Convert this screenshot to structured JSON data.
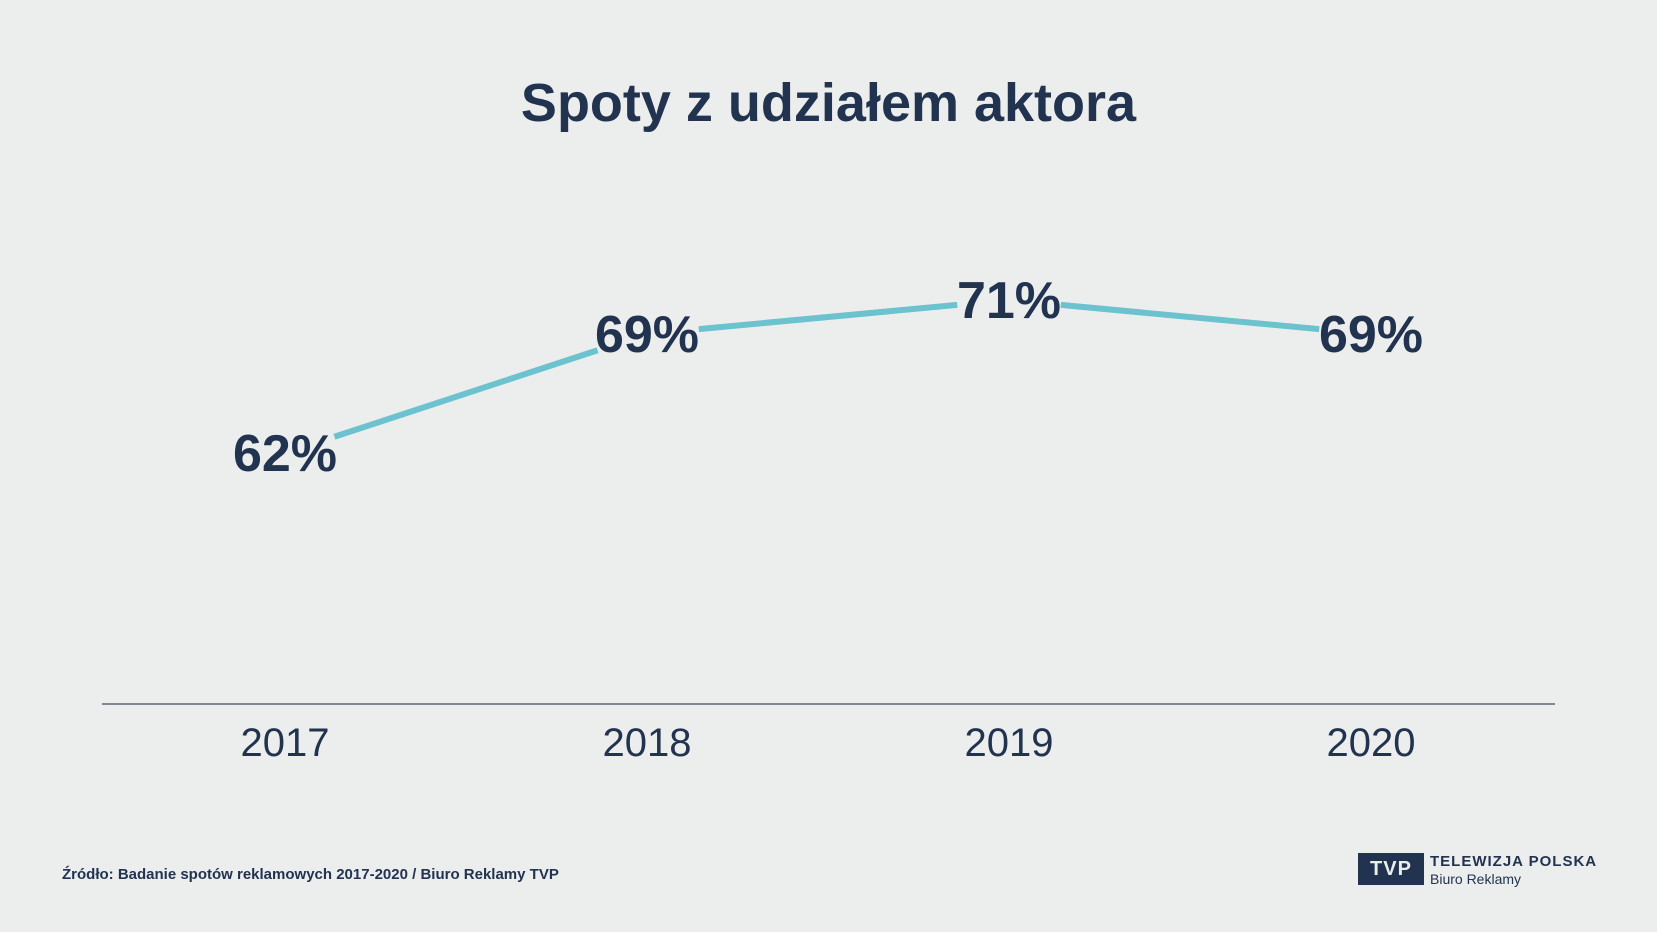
{
  "chart_data": {
    "type": "line",
    "title": "Spoty z udziałem aktora",
    "categories": [
      "2017",
      "2018",
      "2019",
      "2020"
    ],
    "series": [
      {
        "values": [
          62,
          69,
          71,
          69
        ]
      }
    ],
    "data_labels": [
      "62%",
      "69%",
      "71%",
      "69%"
    ],
    "value_unit": "%",
    "ylim": [
      55,
      75
    ],
    "grid": false,
    "legend": "none",
    "line_color": "#6cc2cf",
    "text_color": "#22334f",
    "axis_color": "#5a6678"
  },
  "footer": {
    "source": "Źródło: Badanie spotów reklamowych 2017-2020 / Biuro Reklamy TVP"
  },
  "logo": {
    "mark": "TVP",
    "name": "TELEWIZJA POLSKA",
    "sub": "Biuro Reklamy"
  }
}
